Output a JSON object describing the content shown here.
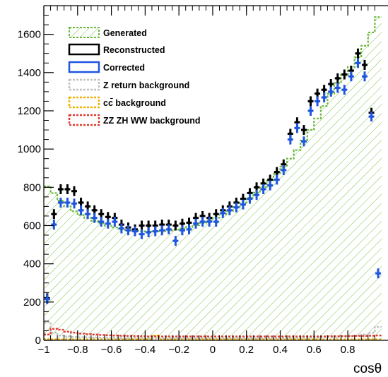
{
  "chart_data": {
    "type": "histogram",
    "xlabel": "cosθ",
    "ylabel": "",
    "xlim": [
      -1,
      1
    ],
    "ylim": [
      0,
      1750
    ],
    "x_ticks": [
      -1,
      -0.8,
      -0.6,
      -0.4,
      -0.2,
      0,
      0.2,
      0.4,
      0.6,
      0.8
    ],
    "x_tick_labels": [
      "−1",
      "−0.8",
      "−0.6",
      "−0.4",
      "−0.2",
      "0",
      "0.2",
      "0.4",
      "0.6",
      "0.8"
    ],
    "y_ticks": [
      0,
      200,
      400,
      600,
      800,
      1000,
      1200,
      1400,
      1600
    ],
    "y_tick_labels": [
      "0",
      "200",
      "400",
      "600",
      "800",
      "1000",
      "1200",
      "1400",
      "1600"
    ],
    "legend_position": "top-left",
    "grid": false,
    "bin_width": 0.04,
    "bin_centers": [
      -0.98,
      -0.94,
      -0.9,
      -0.86,
      -0.82,
      -0.78,
      -0.74,
      -0.7,
      -0.66,
      -0.62,
      -0.58,
      -0.54,
      -0.5,
      -0.46,
      -0.42,
      -0.38,
      -0.34,
      -0.3,
      -0.26,
      -0.22,
      -0.18,
      -0.14,
      -0.1,
      -0.06,
      -0.02,
      0.02,
      0.06,
      0.1,
      0.14,
      0.18,
      0.22,
      0.26,
      0.3,
      0.34,
      0.38,
      0.42,
      0.46,
      0.5,
      0.54,
      0.58,
      0.62,
      0.66,
      0.7,
      0.74,
      0.78,
      0.82,
      0.86,
      0.9,
      0.94,
      0.98
    ],
    "series": [
      {
        "name": "Generated",
        "style": "hatched-fill",
        "color": "#6ab838",
        "values": [
          805,
          770,
          730,
          700,
          675,
          655,
          640,
          625,
          612,
          600,
          590,
          583,
          577,
          573,
          570,
          569,
          569,
          571,
          574,
          578,
          584,
          592,
          602,
          613,
          626,
          641,
          658,
          676,
          697,
          720,
          745,
          772,
          802,
          835,
          870,
          908,
          950,
          995,
          1045,
          1100,
          1160,
          1225,
          1290,
          1345,
          1390,
          1430,
          1480,
          1540,
          1610,
          1690
        ]
      },
      {
        "name": "Reconstructed",
        "style": "markers",
        "color": "#000000",
        "values": [
          220,
          660,
          790,
          790,
          780,
          720,
          700,
          680,
          660,
          645,
          640,
          605,
          590,
          580,
          600,
          600,
          600,
          605,
          605,
          600,
          610,
          615,
          640,
          650,
          640,
          660,
          680,
          700,
          720,
          740,
          770,
          800,
          820,
          840,
          880,
          920,
          1080,
          1140,
          1100,
          1250,
          1290,
          1310,
          1340,
          1370,
          1390,
          1410,
          1500,
          1440,
          1190,
          null
        ]
      },
      {
        "name": "Corrected",
        "style": "markers",
        "color": "#1f55e0",
        "values": [
          215,
          605,
          720,
          720,
          715,
          680,
          660,
          640,
          620,
          610,
          620,
          585,
          575,
          570,
          555,
          565,
          570,
          575,
          580,
          520,
          575,
          580,
          610,
          620,
          620,
          620,
          665,
          680,
          695,
          710,
          740,
          760,
          790,
          810,
          840,
          890,
          1050,
          1110,
          1040,
          1200,
          1250,
          1270,
          1300,
          1320,
          1310,
          1380,
          1450,
          1380,
          1170,
          350
        ]
      },
      {
        "name": "Z return background",
        "style": "dashed-line",
        "color": "#c0c0c0",
        "values": [
          95,
          40,
          25,
          20,
          18,
          16,
          15,
          14,
          14,
          13,
          13,
          12,
          12,
          12,
          11,
          11,
          11,
          11,
          11,
          11,
          11,
          11,
          11,
          11,
          11,
          11,
          11,
          11,
          11,
          11,
          11,
          11,
          11,
          12,
          12,
          12,
          12,
          13,
          13,
          14,
          14,
          15,
          16,
          18,
          20,
          22,
          25,
          30,
          40,
          70
        ]
      },
      {
        "name": "cc̄ background",
        "style": "dashed-line",
        "color": "#f0b000",
        "values": [
          5,
          5,
          5,
          5,
          5,
          5,
          5,
          5,
          5,
          5,
          5,
          5,
          5,
          5,
          5,
          5,
          25,
          5,
          5,
          5,
          5,
          5,
          5,
          5,
          5,
          5,
          5,
          5,
          5,
          5,
          5,
          5,
          5,
          5,
          5,
          5,
          5,
          5,
          5,
          5,
          5,
          5,
          5,
          5,
          5,
          5,
          5,
          5,
          5,
          5
        ]
      },
      {
        "name": "ZZ ZH WW background",
        "style": "dashed-line",
        "color": "#e03a30",
        "values": [
          30,
          60,
          55,
          45,
          40,
          35,
          32,
          30,
          28,
          26,
          25,
          24,
          23,
          22,
          21,
          20,
          20,
          20,
          20,
          20,
          20,
          20,
          20,
          20,
          20,
          20,
          20,
          20,
          20,
          20,
          20,
          20,
          20,
          20,
          20,
          20,
          20,
          20,
          20,
          20,
          20,
          20,
          21,
          21,
          22,
          22,
          23,
          23,
          24,
          25
        ]
      }
    ]
  }
}
